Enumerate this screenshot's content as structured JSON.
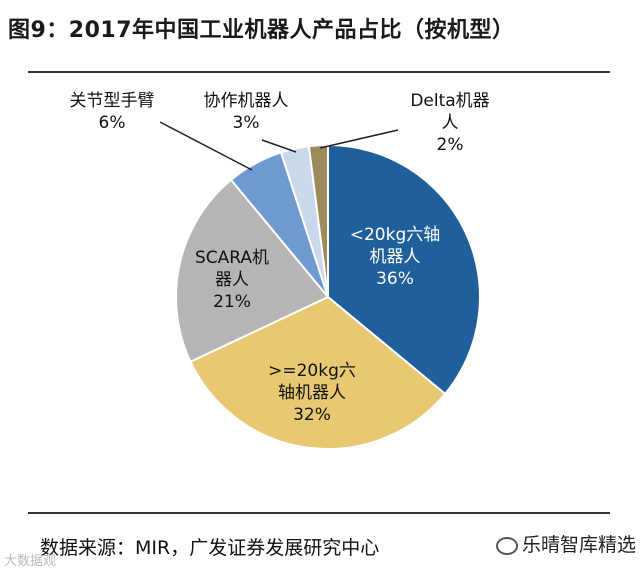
{
  "title": "图9：2017年中国工业机器人产品占比（按机型）",
  "source": "数据来源：MIR，广发证券发展研究中心",
  "watermark_left": "大数据观",
  "watermark_right": "乐晴智库精选",
  "chart_data": {
    "type": "pie",
    "start_angle_deg": 0,
    "direction": "clockwise",
    "slices": [
      {
        "label_lines": [
          "<20kg六轴",
          "机器人"
        ],
        "pct_text": "36%",
        "value": 36,
        "color": "#1f5f9a"
      },
      {
        "label_lines": [
          ">=20kg六",
          "轴机器人"
        ],
        "pct_text": "32%",
        "value": 32,
        "color": "#e8c871"
      },
      {
        "label_lines": [
          "SCARA机",
          "器人"
        ],
        "pct_text": "21%",
        "value": 21,
        "color": "#b5b5b5"
      },
      {
        "label_lines": [
          "关节型手臂"
        ],
        "pct_text": "6%",
        "value": 6,
        "color": "#6f9ad0"
      },
      {
        "label_lines": [
          "协作机器人"
        ],
        "pct_text": "3%",
        "value": 3,
        "color": "#c9d8ea"
      },
      {
        "label_lines": [
          "Delta机器",
          "人"
        ],
        "pct_text": "2%",
        "value": 2,
        "color": "#9b8a5c"
      }
    ]
  }
}
